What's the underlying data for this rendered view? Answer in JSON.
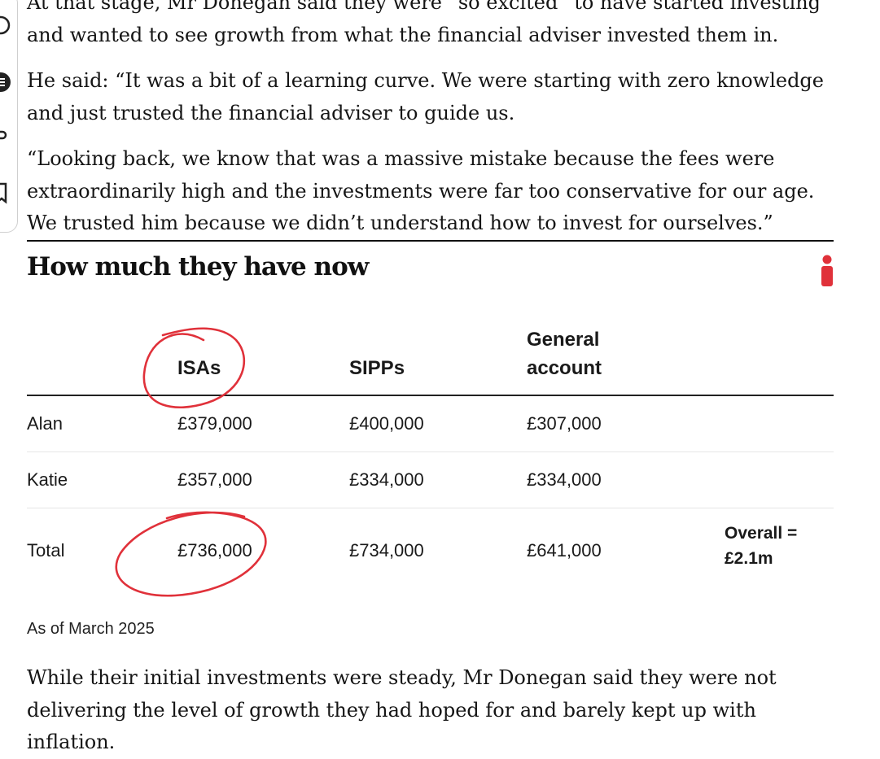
{
  "article": {
    "paragraph_top": [
      "At that stage, Mr Donegan said they were “so excited” to have started investing",
      "and wanted to see growth from what the financial adviser invested them in."
    ],
    "paragraph_quote1": [
      "He said: “It was a bit of a learning curve. We were starting with zero knowledge",
      "and just trusted the financial adviser to guide us."
    ],
    "paragraph_quote2": [
      "“Looking back, we know that was a massive mistake because the fees were",
      "extraordinarily high and the investments were far too conservative for our age.",
      "We trusted him because we didn’t understand how to invest for ourselves.”"
    ],
    "paragraph_bottom": [
      "While their initial investments were steady, Mr Donegan said they were not",
      "delivering the level of growth they had hoped for and barely kept up with",
      "inflation."
    ]
  },
  "table_section": {
    "title": "How much they have now",
    "headers": {
      "name": "",
      "isas": "ISAs",
      "sipps": "SIPPs",
      "general_line1": "General",
      "general_line2": "account"
    },
    "rows": [
      {
        "name": "Alan",
        "isas": "£379,000",
        "sipps": "£400,000",
        "general": "£307,000",
        "extra_line1": "",
        "extra_line2": ""
      },
      {
        "name": "Katie",
        "isas": "£357,000",
        "sipps": "£334,000",
        "general": "£334,000",
        "extra_line1": "",
        "extra_line2": ""
      },
      {
        "name": "Total",
        "isas": "£736,000",
        "sipps": "£734,000",
        "general": "£641,000",
        "extra_line1": "Overall =",
        "extra_line2": "£2.1m"
      }
    ],
    "footnote": "As of March 2025"
  },
  "icons": {
    "rail": [
      "comment-icon",
      "share-icon",
      "link-icon",
      "bookmark-icon"
    ],
    "info": "info-icon"
  },
  "colors": {
    "brand_red": "#e0313a",
    "annotation_red": "#e0313a",
    "text": "#151515"
  }
}
